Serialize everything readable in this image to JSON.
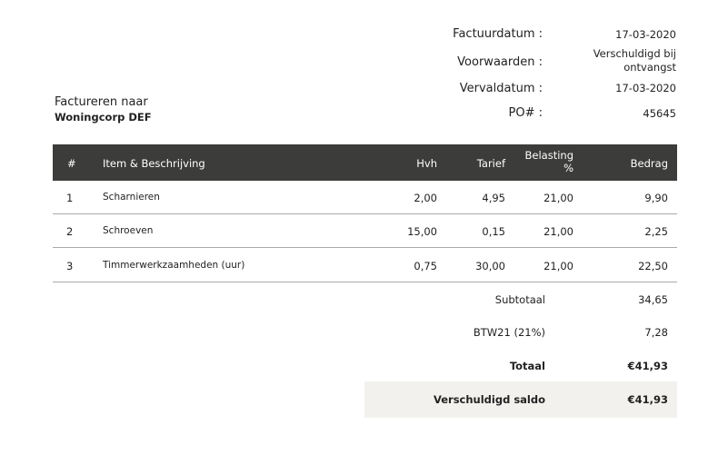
{
  "meta": [
    {
      "label": "Factuurdatum :",
      "value": "17-03-2020"
    },
    {
      "label": "Voorwaarden :",
      "value": "Verschuldigd bij ontvangst"
    },
    {
      "label": "Vervaldatum :",
      "value": "17-03-2020"
    },
    {
      "label": "PO# :",
      "value": "45645"
    }
  ],
  "bill_to": {
    "label": "Factureren naar",
    "name": "Woningcorp DEF"
  },
  "table": {
    "headers": {
      "num": "#",
      "item": "Item & Beschrijving",
      "qty": "Hvh",
      "rate": "Tarief",
      "tax": "Belasting %",
      "amount": "Bedrag"
    },
    "rows": [
      {
        "num": "1",
        "item": "Scharnieren",
        "qty": "2,00",
        "rate": "4,95",
        "tax": "21,00",
        "amount": "9,90"
      },
      {
        "num": "2",
        "item": "Schroeven",
        "qty": "15,00",
        "rate": "0,15",
        "tax": "21,00",
        "amount": "2,25"
      },
      {
        "num": "3",
        "item": "Timmerwerkzaamheden (uur)",
        "qty": "0,75",
        "rate": "30,00",
        "tax": "21,00",
        "amount": "22,50"
      }
    ]
  },
  "summary": {
    "subtotal_label": "Subtotaal",
    "subtotal": "34,65",
    "tax_label": "BTW21 (21%)",
    "tax": "7,28",
    "total_label": "Totaal",
    "total": "€41,93",
    "balance_label": "Verschuldigd saldo",
    "balance": "€41,93"
  },
  "colors": {
    "header_bg": "#3c3c3a",
    "balance_bg": "#f2f1ee"
  }
}
